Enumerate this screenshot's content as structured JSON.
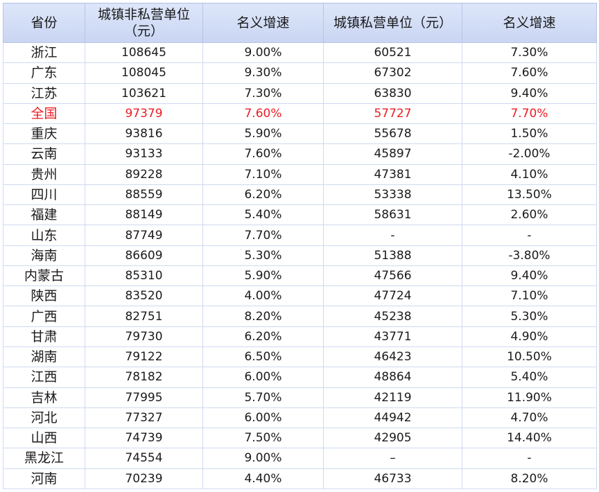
{
  "table": {
    "headers": [
      "省份",
      "城镇非私营单位（元）",
      "名义增速",
      "城镇私营单位（元）",
      "名义增速"
    ],
    "highlight_color": "#ea1c24",
    "highlight_row_label": "全国",
    "rows": [
      [
        "浙江",
        "108645",
        "9.00%",
        "60521",
        "7.30%"
      ],
      [
        "广东",
        "108045",
        "9.30%",
        "67302",
        "7.60%"
      ],
      [
        "江苏",
        "103621",
        "7.30%",
        "63830",
        "9.40%"
      ],
      [
        "全国",
        "97379",
        "7.60%",
        "57727",
        "7.70%"
      ],
      [
        "重庆",
        "93816",
        "5.90%",
        "55678",
        "1.50%"
      ],
      [
        "云南",
        "93133",
        "7.60%",
        "45897",
        "-2.00%"
      ],
      [
        "贵州",
        "89228",
        "7.10%",
        "47381",
        "4.10%"
      ],
      [
        "四川",
        "88559",
        "6.20%",
        "53338",
        "13.50%"
      ],
      [
        "福建",
        "88149",
        "5.40%",
        "58631",
        "2.60%"
      ],
      [
        "山东",
        "87749",
        "7.70%",
        "-",
        "-"
      ],
      [
        "海南",
        "86609",
        "5.30%",
        "51388",
        "-3.80%"
      ],
      [
        "内蒙古",
        "85310",
        "5.90%",
        "47566",
        "9.40%"
      ],
      [
        "陕西",
        "83520",
        "4.00%",
        "47724",
        "7.10%"
      ],
      [
        "广西",
        "82751",
        "8.20%",
        "45238",
        "5.30%"
      ],
      [
        "甘肃",
        "79730",
        "6.20%",
        "43771",
        "4.90%"
      ],
      [
        "湖南",
        "79122",
        "6.50%",
        "46423",
        "10.50%"
      ],
      [
        "江西",
        "78182",
        "6.00%",
        "48864",
        "5.40%"
      ],
      [
        "吉林",
        "77995",
        "5.70%",
        "42119",
        "11.90%"
      ],
      [
        "河北",
        "77327",
        "6.00%",
        "44942",
        "4.70%"
      ],
      [
        "山西",
        "74739",
        "7.50%",
        "42905",
        "14.40%"
      ],
      [
        "黑龙江",
        "74554",
        "9.00%",
        "–",
        "-"
      ],
      [
        "河南",
        "70239",
        "4.40%",
        "46733",
        "8.20%"
      ]
    ]
  }
}
